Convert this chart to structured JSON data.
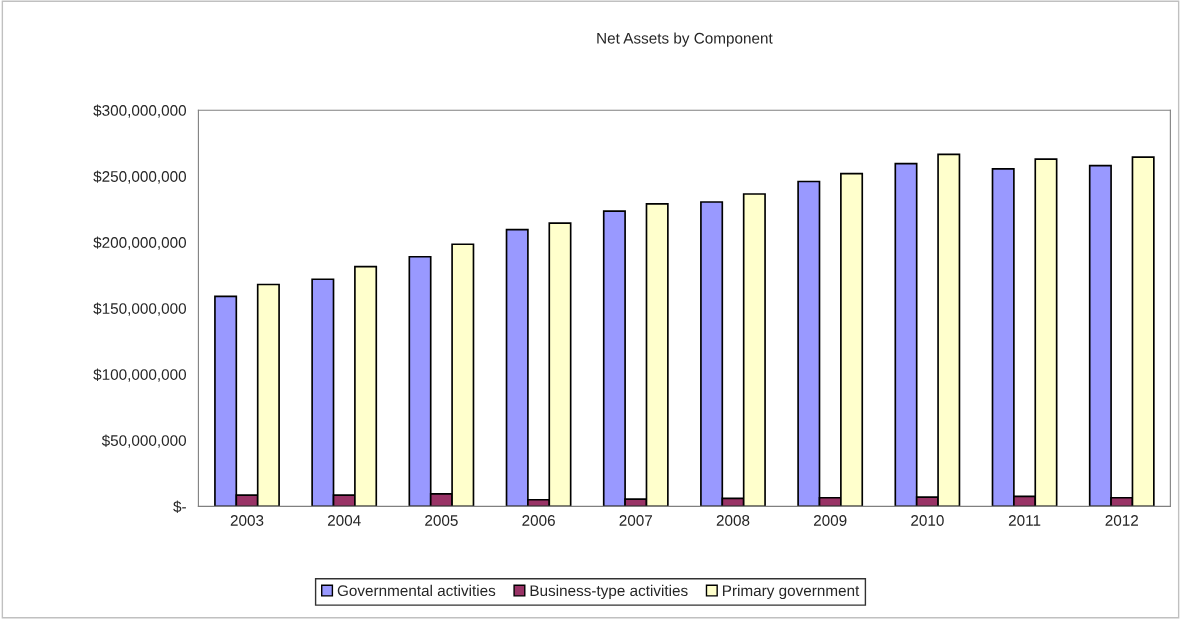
{
  "chart_data": {
    "type": "bar",
    "title": "Net Assets by Component",
    "categories": [
      "2003",
      "2004",
      "2005",
      "2006",
      "2007",
      "2008",
      "2009",
      "2010",
      "2011",
      "2012"
    ],
    "series": [
      {
        "name": "Governmental activities",
        "color": "#9999ff",
        "values": [
          159000000,
          172000000,
          189000000,
          209500000,
          223500000,
          230500000,
          246000000,
          259500000,
          255500000,
          258000000
        ]
      },
      {
        "name": "Business-type activities",
        "color": "#993366",
        "values": [
          8500000,
          8500000,
          9500000,
          5000000,
          5500000,
          6000000,
          6500000,
          7000000,
          7500000,
          6500000
        ]
      },
      {
        "name": "Primary government",
        "color": "#ffffcc",
        "values": [
          168000000,
          181500000,
          198500000,
          214500000,
          229000000,
          236500000,
          252000000,
          266500000,
          263000000,
          264500000
        ]
      }
    ],
    "ylim": [
      0,
      300000000
    ],
    "yticks": [
      {
        "value": 0,
        "label": "$-"
      },
      {
        "value": 50000000,
        "label": "$50,000,000"
      },
      {
        "value": 100000000,
        "label": "$100,000,000"
      },
      {
        "value": 150000000,
        "label": "$150,000,000"
      },
      {
        "value": 200000000,
        "label": "$200,000,000"
      },
      {
        "value": 250000000,
        "label": "$250,000,000"
      },
      {
        "value": 300000000,
        "label": "$300,000,000"
      }
    ],
    "grid": false,
    "legend": "bottom"
  }
}
